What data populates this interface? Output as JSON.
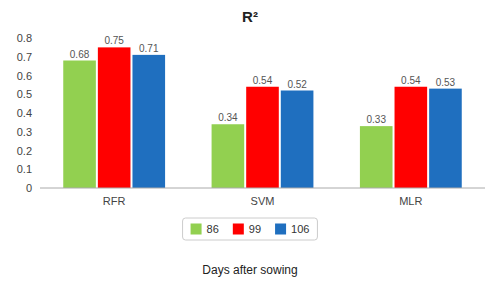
{
  "chart_data": {
    "type": "bar",
    "title": "R²",
    "xlabel": "Days after sowing",
    "categories": [
      "RFR",
      "SVM",
      "MLR"
    ],
    "series": [
      {
        "name": "86",
        "color": "#92D050",
        "values": [
          0.68,
          0.34,
          0.33
        ]
      },
      {
        "name": "99",
        "color": "#FF0000",
        "values": [
          0.75,
          0.54,
          0.54
        ]
      },
      {
        "name": "106",
        "color": "#1F6FBF",
        "values": [
          0.71,
          0.52,
          0.53
        ]
      }
    ],
    "ylim": [
      0,
      0.8
    ],
    "yticks": [
      0,
      0.1,
      0.2,
      0.3,
      0.4,
      0.5,
      0.6,
      0.7,
      0.8
    ],
    "grid": false,
    "legend": "bottom",
    "data_labels": true
  }
}
